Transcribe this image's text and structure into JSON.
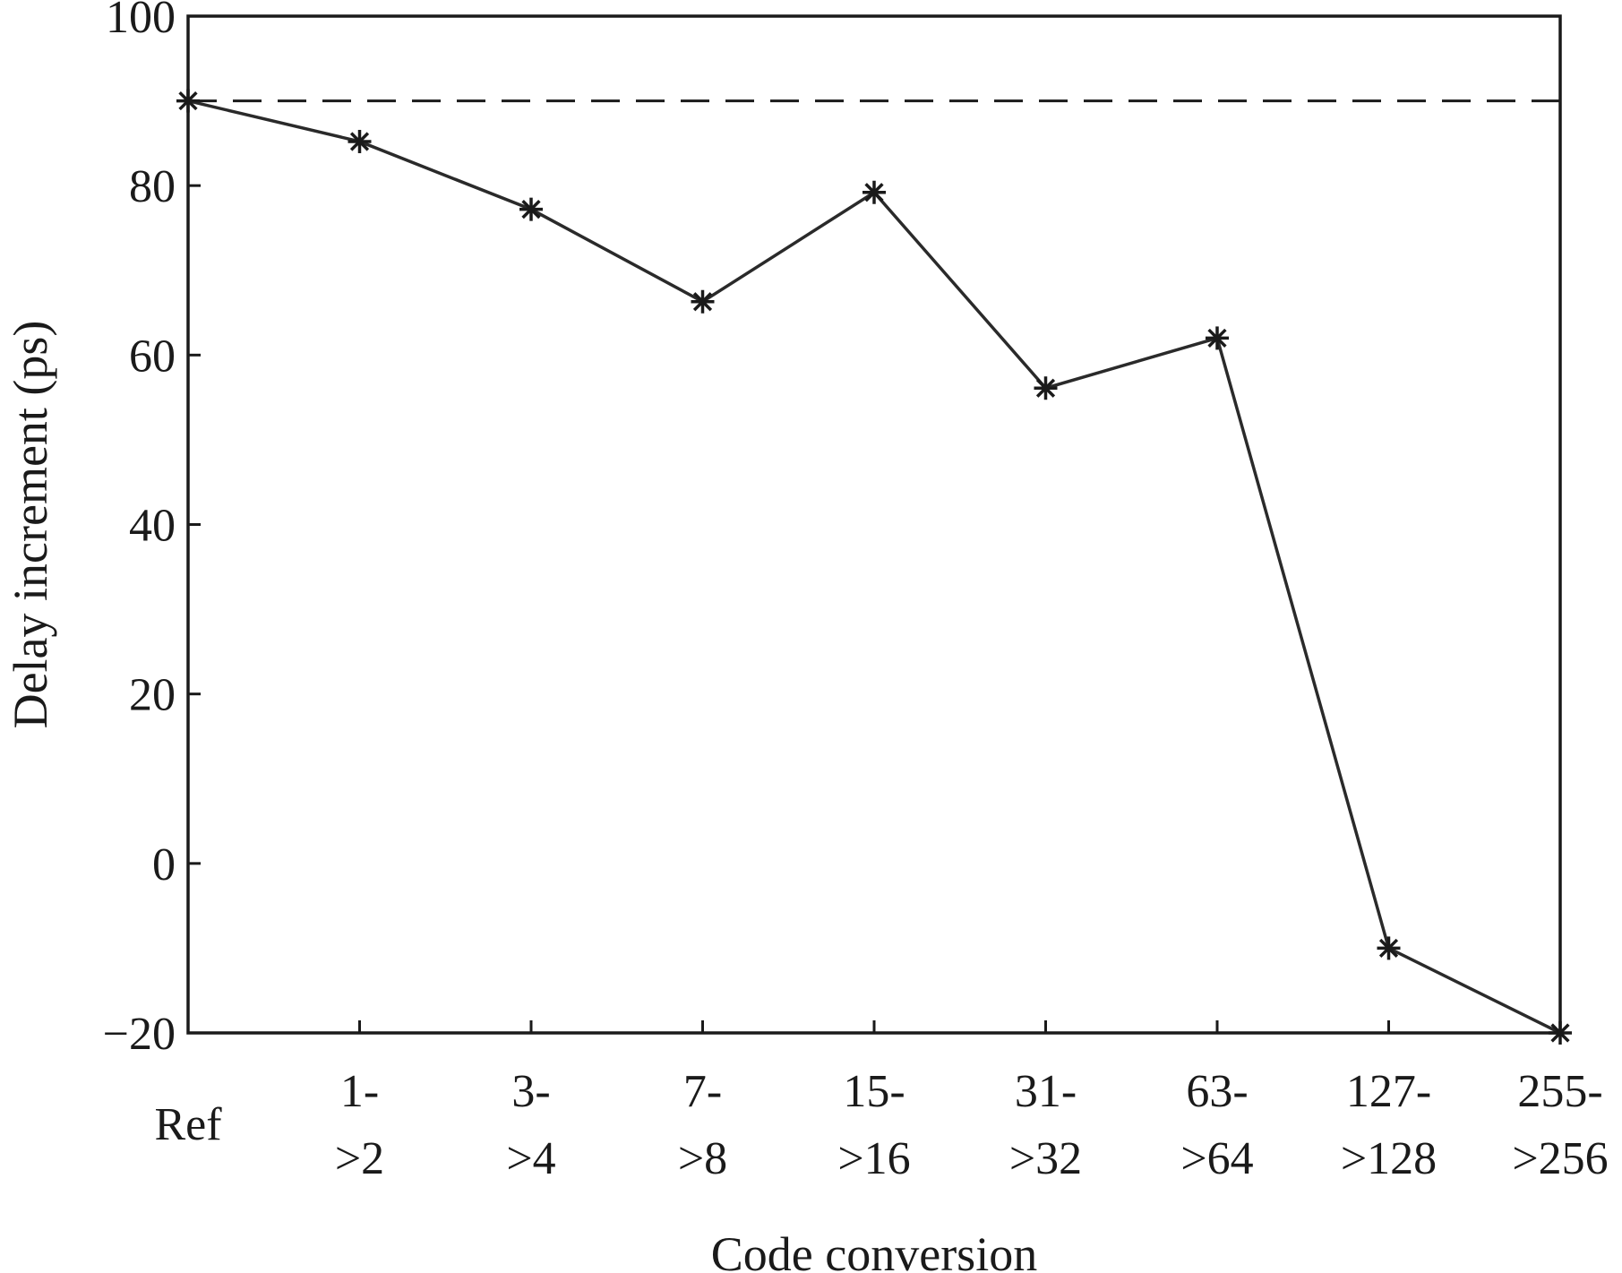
{
  "chart_data": {
    "type": "line",
    "xlabel": "Code conversion",
    "ylabel": "Delay increment (ps)",
    "ylim": [
      -20,
      100
    ],
    "yticks": [
      -20,
      0,
      20,
      40,
      60,
      80,
      100
    ],
    "ytick_labels": [
      "−20",
      "0",
      "20",
      "40",
      "60",
      "80",
      "100"
    ],
    "categories": [
      [
        "Ref"
      ],
      [
        "1-",
        ">2"
      ],
      [
        "3-",
        ">4"
      ],
      [
        "7-",
        ">8"
      ],
      [
        "15-",
        ">16"
      ],
      [
        "31-",
        ">32"
      ],
      [
        "63-",
        ">64"
      ],
      [
        "127-",
        ">128"
      ],
      [
        "255-",
        ">256"
      ]
    ],
    "series": [
      {
        "values": [
          90,
          85.2,
          77.2,
          66.3,
          79.2,
          56.1,
          62,
          -10,
          -20
        ]
      }
    ],
    "reference_line": {
      "y": 90,
      "style": "dashed"
    },
    "grid": false,
    "marker": "asterisk",
    "colors": {
      "line": "#2a2a2a",
      "axis": "#1a1a1a"
    }
  }
}
